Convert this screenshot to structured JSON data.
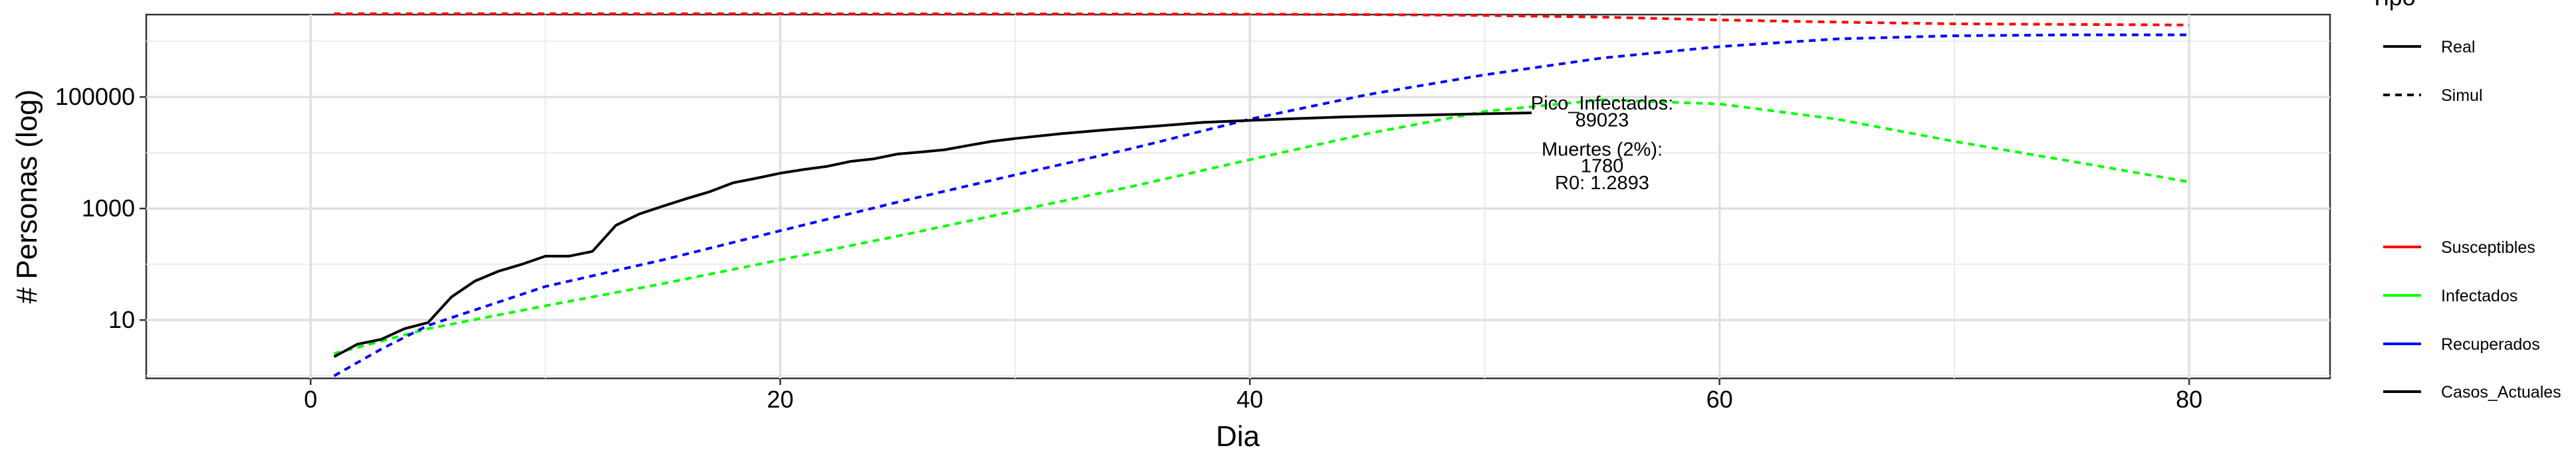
{
  "chart_data": {
    "type": "line",
    "title": "",
    "xlabel": "Dia",
    "ylabel": "# Personas (log)",
    "y_scale": "log10",
    "xlim": [
      -7,
      86
    ],
    "ylim": [
      0.9,
      3000000
    ],
    "x_ticks": [
      0,
      20,
      40,
      60,
      80
    ],
    "x_tick_labels": [
      "0",
      "20",
      "40",
      "60",
      "80"
    ],
    "y_ticks": [
      10,
      1000,
      100000
    ],
    "y_tick_labels": [
      "10",
      "1000",
      "100000"
    ],
    "grid": true,
    "legend_position": "right",
    "legend_linetype": {
      "title": "Tipo",
      "entries": [
        {
          "label": "Real",
          "dash": "solid"
        },
        {
          "label": "Simul",
          "dash": "dashed"
        }
      ]
    },
    "legend_colour": {
      "entries": [
        {
          "label": "Susceptibles",
          "color": "#ff0000"
        },
        {
          "label": "Infectados",
          "color": "#00ff00"
        },
        {
          "label": "Recuperados",
          "color": "#0000ff"
        },
        {
          "label": "Casos_Actuales",
          "color": "#000000"
        }
      ]
    },
    "series": [
      {
        "name": "Susceptibles",
        "color": "#ff0000",
        "dash": "dashed",
        "x": [
          1,
          10,
          20,
          30,
          40,
          45,
          50,
          55,
          60,
          65,
          70,
          75,
          80
        ],
        "y": [
          3100000,
          3100000,
          3100000,
          3090000,
          3050000,
          3000000,
          2900000,
          2700000,
          2400000,
          2200000,
          2050000,
          2000000,
          1950000
        ]
      },
      {
        "name": "Infectados",
        "color": "#00ff00",
        "dash": "dashed",
        "x": [
          1,
          5,
          10,
          15,
          20,
          25,
          30,
          35,
          40,
          45,
          50,
          55,
          60,
          65,
          70,
          75,
          80
        ],
        "y": [
          2.5,
          7,
          18,
          45,
          120,
          320,
          900,
          2500,
          7500,
          22000,
          55000,
          89000,
          75000,
          40000,
          16000,
          7000,
          3000
        ]
      },
      {
        "name": "Recuperados",
        "color": "#0000ff",
        "dash": "dashed",
        "x": [
          1,
          3,
          5,
          10,
          15,
          20,
          25,
          30,
          35,
          40,
          45,
          50,
          55,
          60,
          65,
          70,
          75,
          80
        ],
        "y": [
          1,
          3,
          8,
          40,
          120,
          400,
          1300,
          4000,
          12000,
          40000,
          110000,
          250000,
          500000,
          800000,
          1100000,
          1250000,
          1300000,
          1300000
        ]
      },
      {
        "name": "Casos_Actuales",
        "color": "#000000",
        "dash": "solid",
        "x": [
          1,
          2,
          3,
          4,
          5,
          6,
          7,
          8,
          9,
          10,
          11,
          12,
          13,
          14,
          15,
          16,
          17,
          18,
          19,
          20,
          21,
          22,
          23,
          24,
          25,
          26,
          27,
          28,
          29,
          30,
          32,
          34,
          36,
          38,
          40,
          42,
          44,
          46,
          48,
          50,
          52
        ],
        "y": [
          2.2,
          3.7,
          4.5,
          7,
          9,
          26,
          50,
          75,
          100,
          140,
          140,
          170,
          500,
          800,
          1100,
          1500,
          2000,
          2900,
          3500,
          4300,
          5000,
          5700,
          7000,
          7800,
          9500,
          10300,
          11300,
          13500,
          16000,
          18000,
          22000,
          26000,
          30000,
          35000,
          38000,
          41000,
          44000,
          46000,
          48000,
          50000,
          52000
        ]
      }
    ],
    "annotations": [
      {
        "x": 55,
        "y": 80000,
        "text": "Pico_Infectados:"
      },
      {
        "x": 55,
        "y": 40000,
        "text": "89023"
      },
      {
        "x": 55,
        "y": 12000,
        "text": "Muertes (2%):"
      },
      {
        "x": 55,
        "y": 6000,
        "text": "1780"
      },
      {
        "x": 55,
        "y": 3000,
        "text": "R0: 1.2893"
      }
    ]
  }
}
